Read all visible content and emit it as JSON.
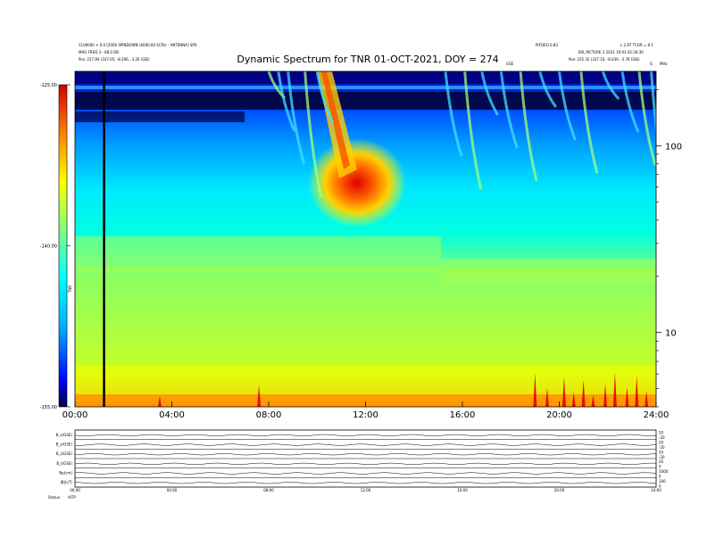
{
  "header": {
    "title": "Dynamic Spectrum for TNR 01-OCT-2021, DOY = 274",
    "left_line1": "1100000 + 0.0 [2000 SPINDOWN (6000.00 SCPs) - ANTENNA] SPX",
    "left_line2": "MAG FREQ 3 - 68.0 DB",
    "left_line3": "Pos:    227.84 (337.05, -8.206, -3.26 GSE)",
    "right_line1": "PIFOEO 0.83",
    "right_line2": "L 2.97 TCOR = 8.1",
    "right_line3": "BIS_PICTURE 3   2021 10:03 02:30:30",
    "right_line4": "Pos:    225.32 (337.16, -8.039, -3.76 GSE)",
    "right_small_1": "GSE",
    "right_small_2": "G",
    "right_small_3": "MHz"
  },
  "colorbar": {
    "ticks": [
      "-125.00",
      "-140.00",
      "-155.00"
    ],
    "label": "TNR",
    "stops": [
      "#000060",
      "#0000ff",
      "#00a0ff",
      "#00ffff",
      "#a0ff60",
      "#ffff00",
      "#ff8000",
      "#ff0000",
      "#c00000"
    ]
  },
  "chart_data": {
    "type": "heatmap",
    "title": "Dynamic Spectrum for TNR 01-OCT-2021, DOY = 274",
    "x_ticks": [
      "00:00",
      "04:00",
      "08:00",
      "12:00",
      "16:00",
      "20:00",
      "24:00"
    ],
    "x_range_hours": [
      0,
      24
    ],
    "y_scale": "log",
    "y_ticks": [
      "100",
      "10"
    ],
    "y_tick_values": [
      100,
      10
    ],
    "y_range": [
      4,
      250
    ],
    "z_range": [
      -155,
      -125
    ],
    "vertical_marker_hour": 1.2
  },
  "panels": {
    "labels": [
      "B_x(GSE)",
      "B_y(GSE)",
      "B_z(GSE)",
      "B_t(GSE)",
      "Np(cm)",
      "|B|(nT)"
    ],
    "right_labels": [
      "20",
      "-20",
      "20",
      "-20",
      "20",
      "-20",
      "20",
      "0",
      "1000",
      "0",
      "100",
      "0"
    ],
    "x_ticks": [
      "00:00",
      "04:00",
      "08:00",
      "12:00",
      "16:00",
      "20:00",
      "24:00"
    ],
    "footer": "Status:   ",
    "footer2": "AITP"
  }
}
